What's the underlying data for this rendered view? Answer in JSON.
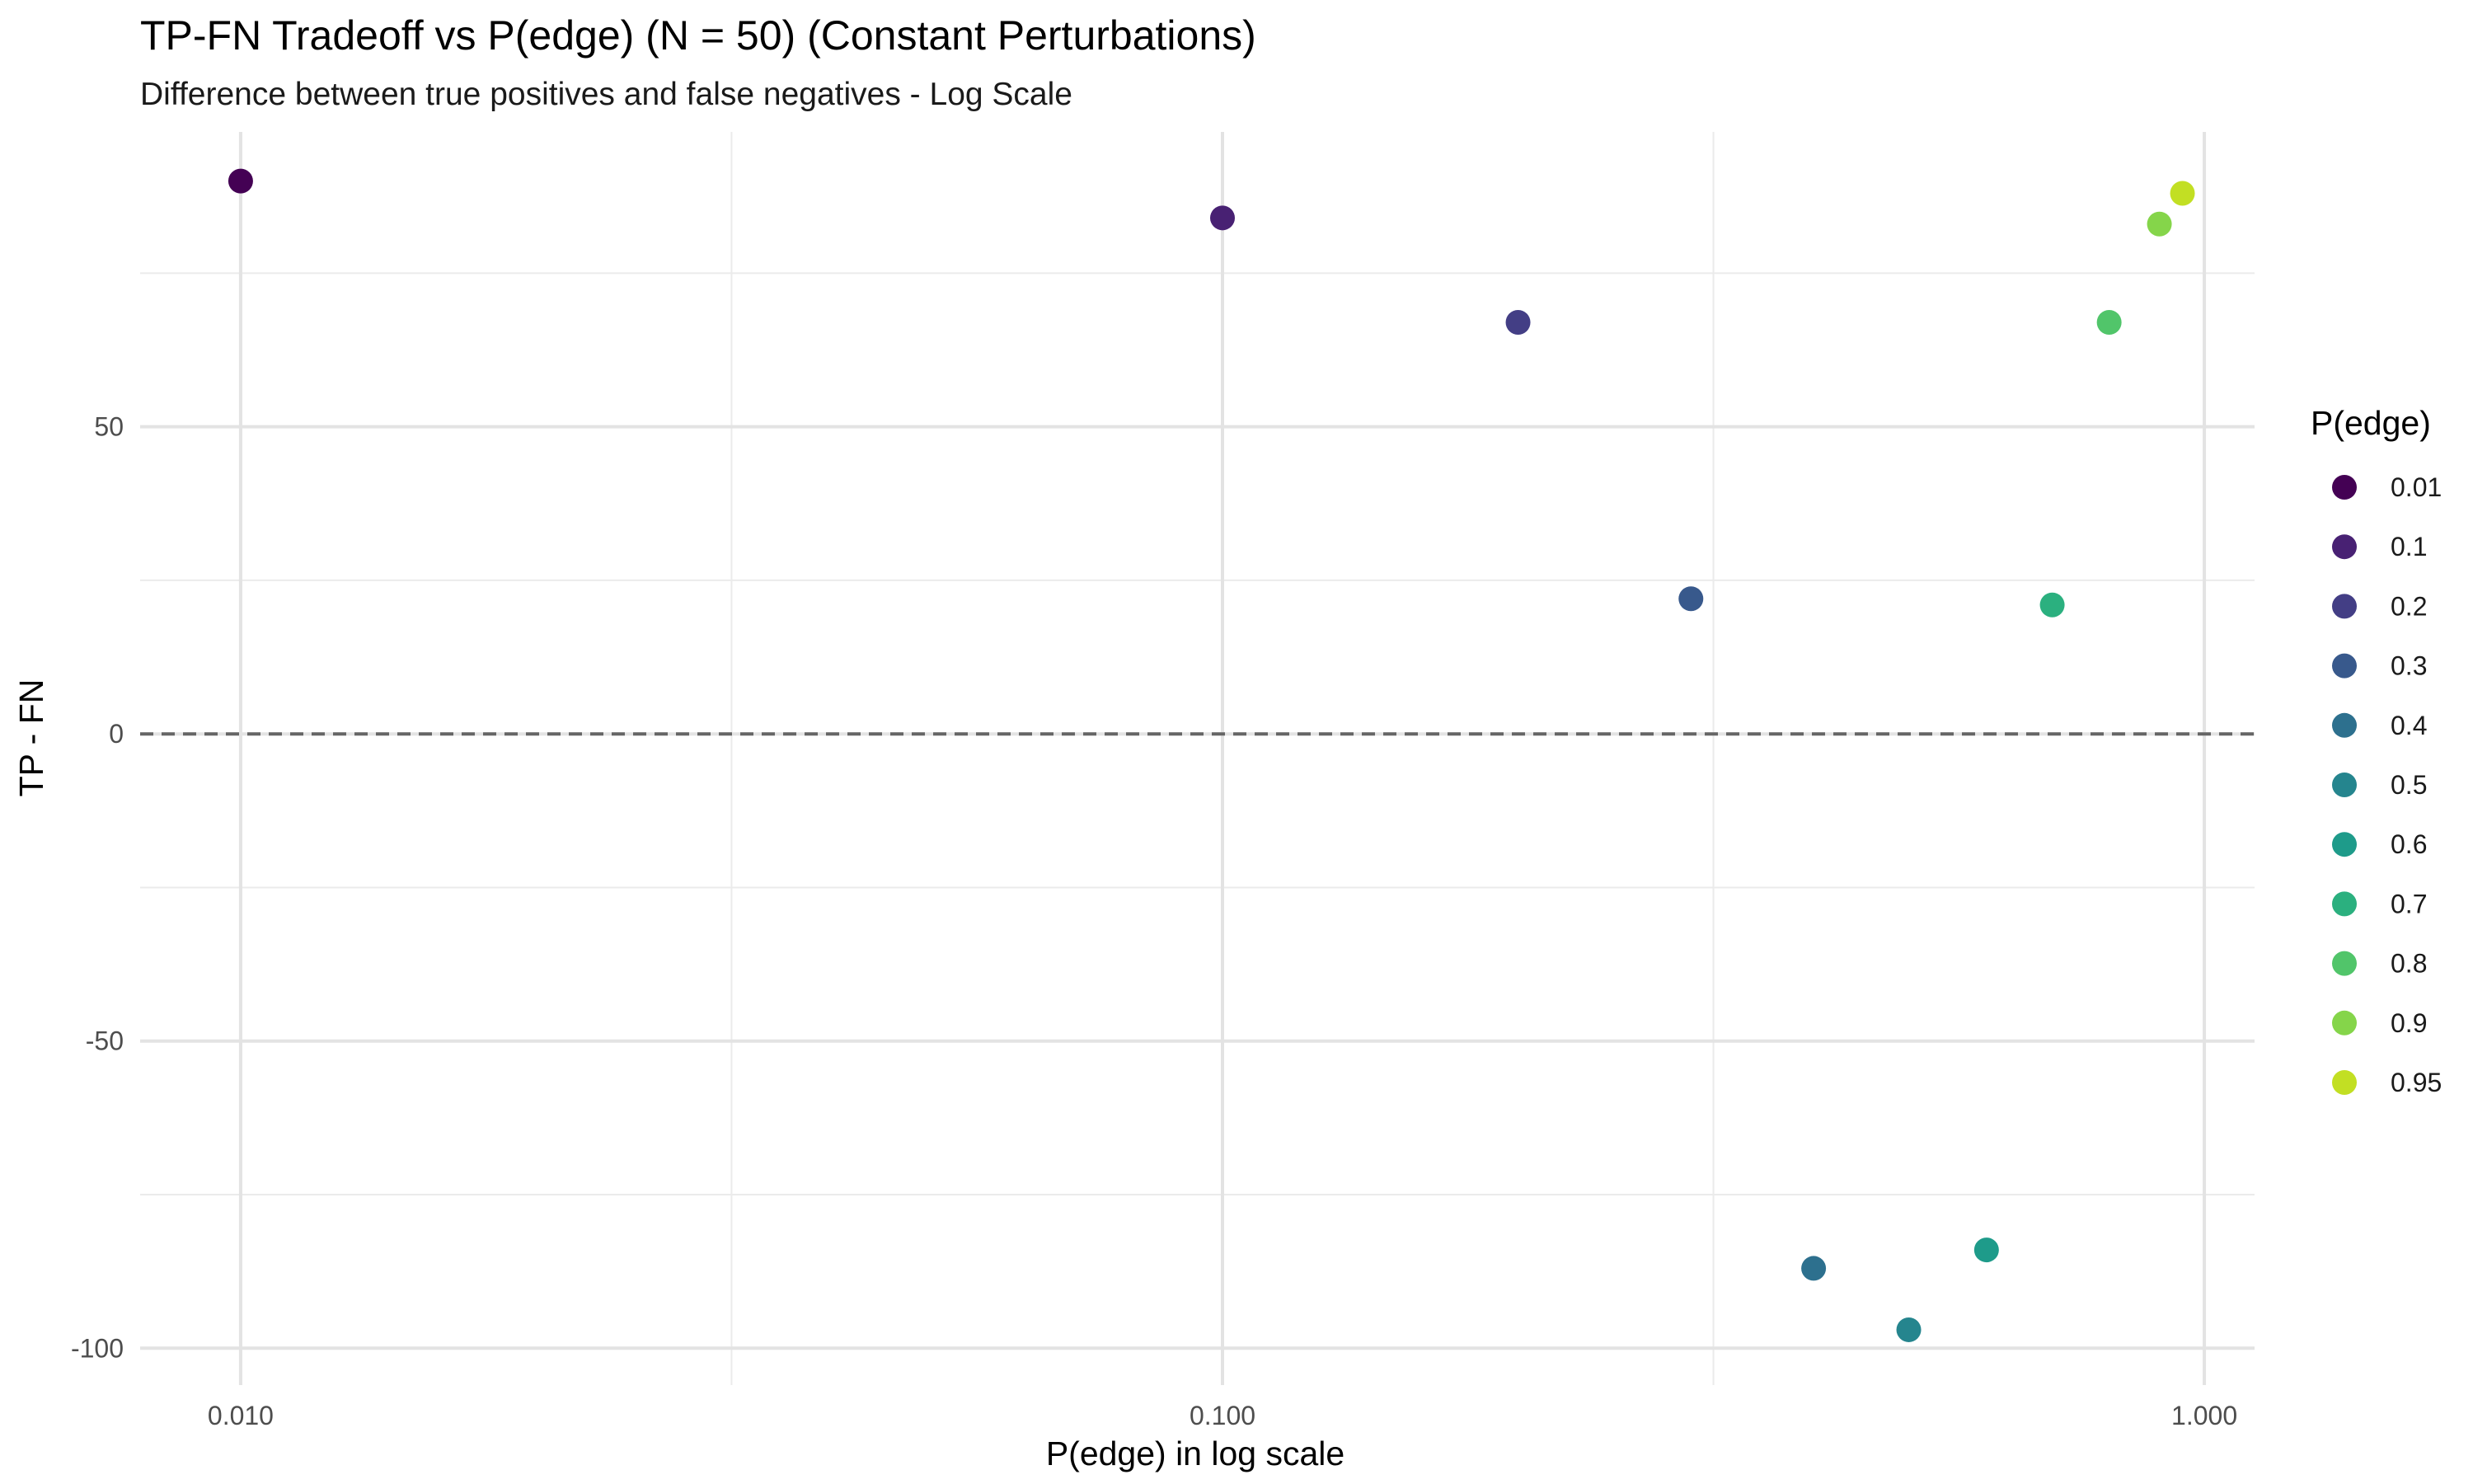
{
  "chart_data": {
    "type": "scatter",
    "title": "TP-FN Tradeoff vs P(edge) (N = 50) (Constant Perturbations)",
    "subtitle": "Difference between true positives and false negatives - Log Scale",
    "xlabel": "P(edge) in log scale",
    "ylabel": "TP - FN",
    "x_scale": "log10",
    "xlim": [
      0.0079,
      1.125
    ],
    "ylim": [
      -106,
      98
    ],
    "x_ticks": [
      0.01,
      0.1,
      1.0
    ],
    "x_tick_labels": [
      "0.010",
      "0.100",
      "1.000"
    ],
    "y_ticks": [
      -100,
      -50,
      0,
      50
    ],
    "y_tick_labels": [
      "-100",
      "-50",
      "0",
      "50"
    ],
    "grid": true,
    "reference_line": {
      "y": 0,
      "style": "dashed",
      "color": "#666666"
    },
    "legend": {
      "title": "P(edge)",
      "position": "right",
      "entries": [
        {
          "label": "0.01",
          "color": "#440154"
        },
        {
          "label": "0.1",
          "color": "#482173"
        },
        {
          "label": "0.2",
          "color": "#433E85"
        },
        {
          "label": "0.3",
          "color": "#38598C"
        },
        {
          "label": "0.4",
          "color": "#2D708E"
        },
        {
          "label": "0.5",
          "color": "#25858E"
        },
        {
          "label": "0.6",
          "color": "#1E9B8A"
        },
        {
          "label": "0.7",
          "color": "#2BB07F"
        },
        {
          "label": "0.8",
          "color": "#51C56A"
        },
        {
          "label": "0.9",
          "color": "#85D54A"
        },
        {
          "label": "0.95",
          "color": "#C2DF23"
        }
      ]
    },
    "points": [
      {
        "x": 0.01,
        "y": 90,
        "group": "0.01",
        "color": "#440154"
      },
      {
        "x": 0.1,
        "y": 84,
        "group": "0.1",
        "color": "#482173"
      },
      {
        "x": 0.2,
        "y": 67,
        "group": "0.2",
        "color": "#433E85"
      },
      {
        "x": 0.3,
        "y": 22,
        "group": "0.3",
        "color": "#38598C"
      },
      {
        "x": 0.4,
        "y": -87,
        "group": "0.4",
        "color": "#2D708E"
      },
      {
        "x": 0.5,
        "y": -97,
        "group": "0.5",
        "color": "#25858E"
      },
      {
        "x": 0.6,
        "y": -84,
        "group": "0.6",
        "color": "#1E9B8A"
      },
      {
        "x": 0.7,
        "y": 21,
        "group": "0.7",
        "color": "#2BB07F"
      },
      {
        "x": 0.8,
        "y": 67,
        "group": "0.8",
        "color": "#51C56A"
      },
      {
        "x": 0.9,
        "y": 83,
        "group": "0.9",
        "color": "#85D54A"
      },
      {
        "x": 0.95,
        "y": 88,
        "group": "0.95",
        "color": "#C2DF23"
      }
    ]
  }
}
